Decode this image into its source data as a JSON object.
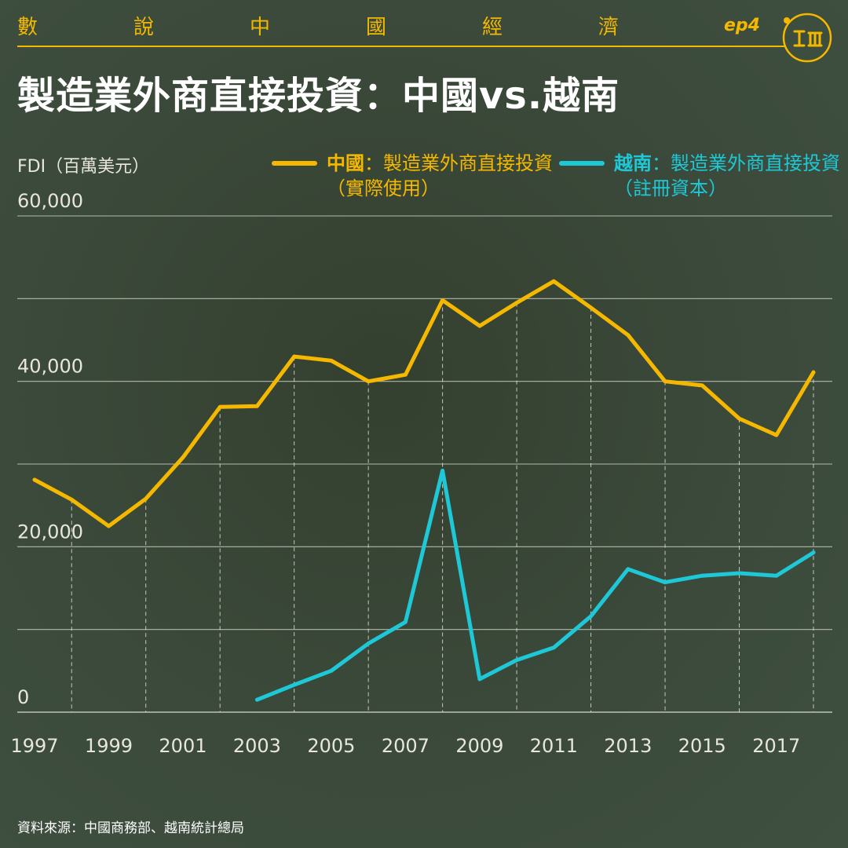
{
  "header": {
    "series_chars": [
      "數",
      "說",
      "中",
      "國",
      "經",
      "濟"
    ],
    "episode": "ep4"
  },
  "title": "製造業外商直接投資：中國vs.越南",
  "source": "資料來源：中國商務部、越南統計總局",
  "colors": {
    "accent": "#f5b800",
    "china": "#f5b800",
    "vietnam": "#1ec8d6",
    "grid": "#c9ccc0"
  },
  "logo_icon": "initium-logo-icon",
  "chart_data": {
    "type": "line",
    "ylabel": "FDI（百萬美元）",
    "ylim": [
      0,
      60000
    ],
    "yticks": [
      0,
      20000,
      40000,
      60000
    ],
    "ytick_labels": [
      "0",
      "20,000",
      "40,000",
      "60,000"
    ],
    "x": [
      1997,
      1998,
      1999,
      2000,
      2001,
      2002,
      2003,
      2004,
      2005,
      2006,
      2007,
      2008,
      2009,
      2010,
      2011,
      2012,
      2013,
      2014,
      2015,
      2016,
      2017,
      2018
    ],
    "xtick_labels": [
      "1997",
      "1999",
      "2001",
      "2003",
      "2005",
      "2007",
      "2009",
      "2011",
      "2013",
      "2015",
      "2017"
    ],
    "grid": true,
    "series": [
      {
        "name": "中國",
        "description": "：製造業外商直接投資（實際使用）",
        "color": "#f5b800",
        "values": [
          28100,
          25700,
          22500,
          25800,
          30800,
          36900,
          37000,
          43000,
          42500,
          40000,
          40800,
          49800,
          46700,
          49500,
          52100,
          48900,
          45600,
          40000,
          39500,
          35500,
          33500,
          41100
        ]
      },
      {
        "name": "越南",
        "description": "：製造業外商直接投資（註冊資本）",
        "color": "#1ec8d6",
        "values": [
          null,
          null,
          null,
          null,
          null,
          null,
          1500,
          3300,
          5000,
          8300,
          10900,
          29200,
          4000,
          6300,
          7800,
          11600,
          17300,
          15700,
          16500,
          16800,
          16500,
          19300
        ]
      }
    ]
  }
}
